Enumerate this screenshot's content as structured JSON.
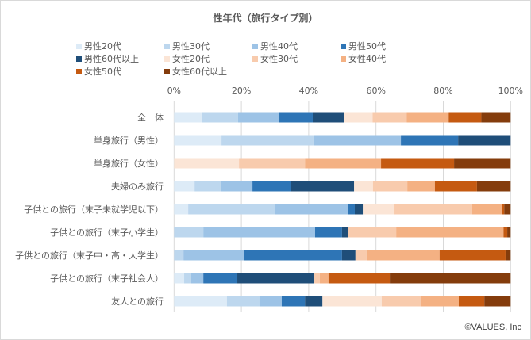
{
  "chart_data": {
    "type": "bar",
    "orientation": "horizontal",
    "stacked": "percent",
    "title": "性年代（旅行タイプ別）",
    "categories": [
      "全　体",
      "単身旅行（男性）",
      "単身旅行（女性）",
      "夫婦のみ旅行",
      "子供との旅行（末子未就学児以下）",
      "子供との旅行（末子小学生）",
      "子供との旅行（末子中・高・大学生）",
      "子供との旅行（末子社会人）",
      "友人との旅行"
    ],
    "series": [
      {
        "name": "男性20代",
        "color": "#DDEBF7",
        "values": [
          8.4,
          14.1,
          0,
          6.1,
          4.2,
          0,
          0,
          3.0,
          15.7
        ]
      },
      {
        "name": "男性30代",
        "color": "#BDD7EE",
        "values": [
          10.6,
          27.3,
          0,
          7.7,
          25.9,
          8.7,
          2.8,
          2.1,
          9.7
        ]
      },
      {
        "name": "男性40代",
        "color": "#9DC3E6",
        "values": [
          12.3,
          26.0,
          0,
          9.5,
          21.5,
          33.2,
          17.9,
          3.6,
          6.6
        ]
      },
      {
        "name": "男性50代",
        "color": "#2E75B6",
        "values": [
          9.9,
          17.0,
          0,
          11.5,
          2.1,
          8.0,
          29.2,
          10.1,
          6.9
        ]
      },
      {
        "name": "男性60代以上",
        "color": "#1F4E79",
        "values": [
          9.4,
          15.6,
          0,
          18.7,
          2.4,
          1.7,
          4.0,
          22.9,
          5.2
        ]
      },
      {
        "name": "女性20代",
        "color": "#FBE5D6",
        "values": [
          8.4,
          0,
          19.3,
          5.6,
          9.4,
          0,
          0,
          0,
          17.6
        ]
      },
      {
        "name": "女性30代",
        "color": "#F8CBAD",
        "values": [
          10.1,
          0,
          19.6,
          10.2,
          23.1,
          14.4,
          3.3,
          1.6,
          11.6
        ]
      },
      {
        "name": "女性40代",
        "color": "#F4B183",
        "values": [
          12.5,
          0,
          22.6,
          8.2,
          8.8,
          31.9,
          21.7,
          2.6,
          11.3
        ]
      },
      {
        "name": "女性50代",
        "color": "#C55A11",
        "values": [
          9.7,
          0,
          21.7,
          12.5,
          0.7,
          1.1,
          19.6,
          18.2,
          7.6
        ]
      },
      {
        "name": "女性60代以上",
        "color": "#843C0C",
        "values": [
          8.7,
          0,
          16.8,
          10.0,
          1.9,
          1.0,
          1.5,
          35.9,
          7.8
        ]
      }
    ],
    "xticks": [
      "0%",
      "20%",
      "40%",
      "60%",
      "80%",
      "100%"
    ],
    "xlim": [
      0,
      100
    ],
    "xlabel": "",
    "ylabel": "",
    "grid": true,
    "legend": "top"
  },
  "credit": "©VALUES, Inc"
}
